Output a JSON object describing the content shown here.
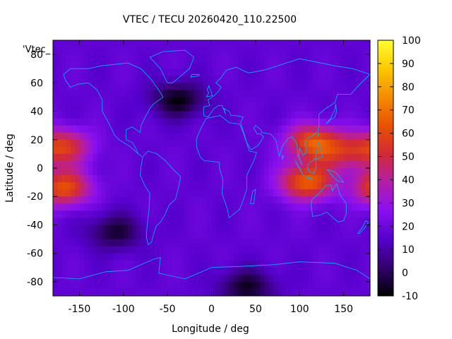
{
  "chart_data": {
    "type": "heatmap",
    "title": "VTEC / TECU 20260420_110.22500",
    "xlabel": "Longitude / deg",
    "ylabel": "Latitude / deg",
    "xlim": [
      -180,
      180
    ],
    "ylim": [
      -90,
      90
    ],
    "xticks": [
      -150,
      -100,
      -50,
      0,
      50,
      100,
      150
    ],
    "yticks": [
      -80,
      -60,
      -40,
      -20,
      0,
      20,
      40,
      60,
      80
    ],
    "colorbar": {
      "range": [
        -10,
        100
      ],
      "ticks": [
        -10,
        0,
        10,
        20,
        30,
        40,
        50,
        60,
        70,
        80,
        90,
        100
      ],
      "palette": [
        "#000000",
        "#33006f",
        "#5600cc",
        "#8a10f0",
        "#b51ea8",
        "#d22a35",
        "#e85200",
        "#f48c00",
        "#fbc800",
        "#ffff30"
      ]
    },
    "legend_label": "'Vtec_",
    "background_tec": 17,
    "anomalies": [
      {
        "lon": 115,
        "lat": 18,
        "peak": 62
      },
      {
        "lon": 108,
        "lat": -10,
        "peak": 66
      },
      {
        "lon": 150,
        "lat": 10,
        "peak": 42
      },
      {
        "lon": -168,
        "lat": 15,
        "peak": 55
      },
      {
        "lon": -168,
        "lat": -14,
        "peak": 62
      },
      {
        "lon": -38,
        "lat": 48,
        "peak": -8
      },
      {
        "lon": 40,
        "lat": -84,
        "peak": -6
      },
      {
        "lon": -110,
        "lat": -45,
        "peak": -4
      },
      {
        "lon": 70,
        "lat": -40,
        "peak": 18
      }
    ],
    "coastline_color": "#00b4ff",
    "grid": false
  }
}
